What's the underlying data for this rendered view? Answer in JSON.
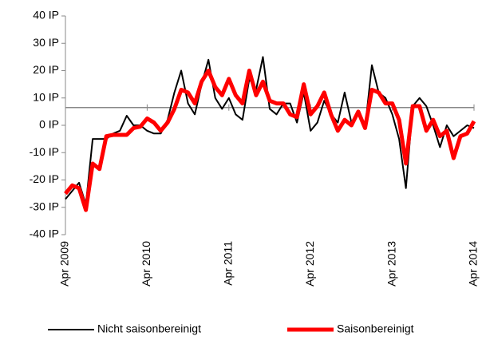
{
  "chart_data": {
    "type": "line",
    "categories": [
      "Apr 2009",
      null,
      null,
      null,
      null,
      null,
      null,
      null,
      null,
      null,
      null,
      null,
      "Apr 2010",
      null,
      null,
      null,
      null,
      null,
      null,
      null,
      null,
      null,
      null,
      null,
      "Apr 2011",
      null,
      null,
      null,
      null,
      null,
      null,
      null,
      null,
      null,
      null,
      null,
      "Apr 2012",
      null,
      null,
      null,
      null,
      null,
      null,
      null,
      null,
      null,
      null,
      null,
      "Apr 2013",
      null,
      null,
      null,
      null,
      null,
      null,
      null,
      null,
      null,
      null,
      null,
      "Apr 2014"
    ],
    "series": [
      {
        "name": "Nicht saisonbereinigt",
        "color": "#000000",
        "width": 2,
        "values": [
          -27,
          -24,
          -21,
          -29,
          -5,
          -5,
          -5,
          -3,
          -2,
          3.5,
          0,
          0,
          -2,
          -3,
          -3,
          2,
          12,
          20,
          8,
          4,
          15,
          24,
          10,
          6,
          10,
          4,
          2,
          17,
          13,
          25,
          6,
          4,
          8,
          8,
          1,
          12,
          -2,
          1,
          9,
          4,
          1,
          12,
          1,
          4,
          -1,
          22,
          12,
          10,
          4,
          -5,
          -23,
          7,
          10,
          7,
          0,
          -8,
          0,
          -4,
          -2,
          0,
          -1
        ]
      },
      {
        "name": "Saisonbereinigt",
        "color": "#ff0000",
        "width": 5,
        "values": [
          -25,
          -22,
          -23,
          -31,
          -14,
          -16,
          -4,
          -3.5,
          -3.5,
          -3.5,
          -1,
          -0.5,
          2.5,
          1,
          -2,
          1,
          6,
          13,
          12,
          8,
          16,
          20,
          14,
          11,
          17,
          11,
          8,
          20,
          11,
          16,
          9,
          8,
          8,
          4,
          3,
          15,
          4,
          7,
          12,
          4,
          -2,
          2,
          0,
          5,
          -1,
          13,
          12,
          8,
          8,
          2,
          -14,
          7,
          7,
          -2,
          2,
          -4,
          -2,
          -12,
          -4,
          -3,
          1.5
        ]
      }
    ],
    "ylim": [
      -40,
      40
    ],
    "yticks": [
      {
        "value": -40,
        "label": "-40 IP"
      },
      {
        "value": -30,
        "label": "-30 IP"
      },
      {
        "value": -20,
        "label": "-20 IP"
      },
      {
        "value": -10,
        "label": "-10 IP"
      },
      {
        "value": 0,
        "label": "0 IP"
      },
      {
        "value": 10,
        "label": "10 IP"
      },
      {
        "value": 20,
        "label": "20 IP"
      },
      {
        "value": 30,
        "label": "30 IP"
      },
      {
        "value": 40,
        "label": "40 IP"
      }
    ],
    "xaxis_crosses": 6.5,
    "legend": "bottom"
  }
}
